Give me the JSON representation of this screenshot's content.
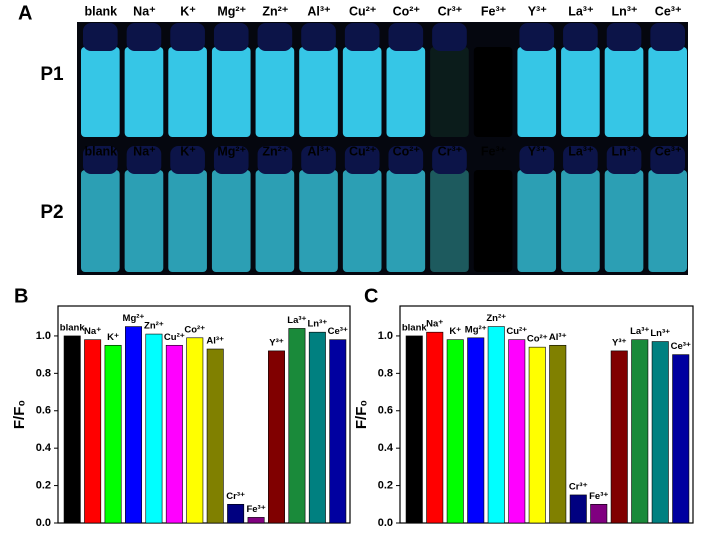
{
  "panel_a": {
    "label": "A",
    "rows": [
      {
        "label": "P1",
        "ions": [
          "blank",
          "Na⁺",
          "K⁺",
          "Mg²⁺",
          "Zn²⁺",
          "Al³⁺",
          "Cu²⁺",
          "Co²⁺",
          "Cr³⁺",
          "Fe³⁺",
          "Y³⁺",
          "La³⁺",
          "Ln³⁺",
          "Ce³⁺"
        ]
      },
      {
        "label": "P2",
        "ions": [
          "blank",
          "Na⁺",
          "K⁺",
          "Mg²⁺",
          "Zn²⁺",
          "Al³⁺",
          "Cu²⁺",
          "Co²⁺",
          "Cr³⁺",
          "Fe³⁺",
          "Y³⁺",
          "La³⁺",
          "Ln³⁺",
          "Ce³⁺"
        ]
      }
    ]
  },
  "chart_data": [
    {
      "type": "bar",
      "panel": "B",
      "y_label": "F/F₀",
      "categories": [
        "blank",
        "Na⁺",
        "K⁺",
        "Mg²⁺",
        "Zn²⁺",
        "Cu²⁺",
        "Co²⁺",
        "Al³⁺",
        "Cr³⁺",
        "Fe³⁺",
        "Y³⁺",
        "La³⁺",
        "Ln³⁺",
        "Ce³⁺"
      ],
      "values": [
        1.0,
        0.98,
        0.95,
        1.05,
        1.01,
        0.95,
        0.99,
        0.93,
        0.1,
        0.03,
        0.92,
        1.04,
        1.02,
        0.98
      ],
      "colors": [
        "#000000",
        "#ff0000",
        "#00ff00",
        "#0000ff",
        "#00ffff",
        "#ff00ff",
        "#ffff00",
        "#808000",
        "#000080",
        "#800080",
        "#800000",
        "#1a8a3a",
        "#008080",
        "#0000a0"
      ],
      "ylim": [
        0,
        1.16
      ],
      "yticks": [
        {
          "value": 0,
          "label": "0.0"
        },
        0.2,
        0.4,
        0.6,
        0.8,
        {
          "value": 1,
          "label": "1.0"
        }
      ]
    },
    {
      "type": "bar",
      "panel": "C",
      "y_label": "F/F₀",
      "categories": [
        "blank",
        "Na⁺",
        "K⁺",
        "Mg²⁺",
        "Zn²⁺",
        "Cu²⁺",
        "Co²⁺",
        "Al³⁺",
        "Cr³⁺",
        "Fe³⁺",
        "Y³⁺",
        "La³⁺",
        "Ln³⁺",
        "Ce³⁺"
      ],
      "values": [
        1.0,
        1.02,
        0.98,
        0.99,
        1.05,
        0.98,
        0.94,
        0.95,
        0.15,
        0.1,
        0.92,
        0.98,
        0.97,
        0.9
      ],
      "colors": [
        "#000000",
        "#ff0000",
        "#00ff00",
        "#0000ff",
        "#00ffff",
        "#ff00ff",
        "#ffff00",
        "#808000",
        "#000080",
        "#800080",
        "#800000",
        "#1a8a3a",
        "#008080",
        "#0000a0"
      ],
      "ylim": [
        0,
        1.16
      ],
      "yticks": [
        {
          "value": 0,
          "label": "0.0"
        },
        0.2,
        0.4,
        0.6,
        0.8,
        {
          "value": 1,
          "label": "1.0"
        }
      ]
    }
  ]
}
